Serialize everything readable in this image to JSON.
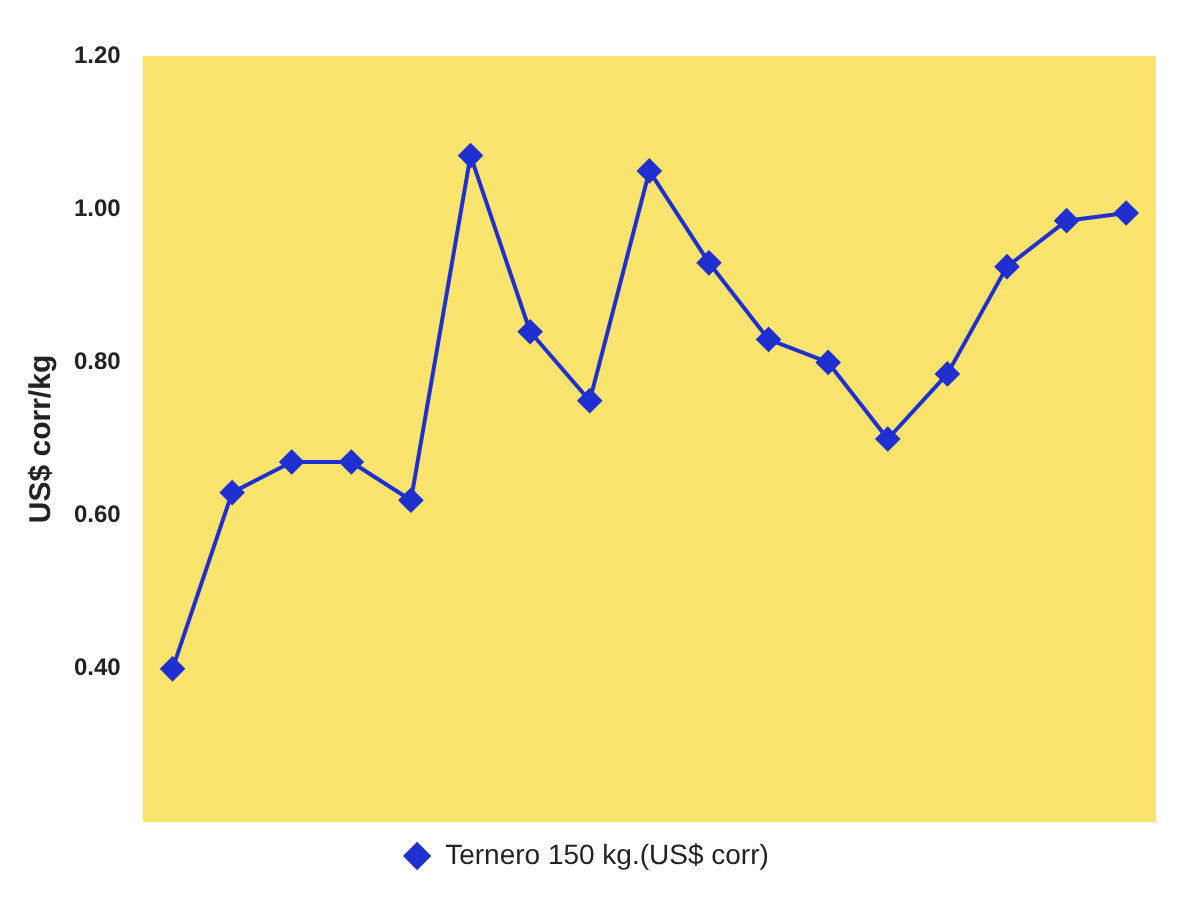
{
  "chart_data": {
    "type": "line",
    "ylabel": "US$ corr/kg",
    "categories": [
      null,
      null,
      null,
      null,
      null,
      null,
      null,
      null,
      null,
      null,
      null,
      null,
      null,
      null,
      null,
      null,
      null
    ],
    "series": [
      {
        "name": "Ternero 150 kg.(US$ corr)",
        "color": "#1f2fd0",
        "values": [
          0.4,
          0.63,
          0.67,
          0.67,
          0.62,
          1.07,
          0.84,
          0.75,
          1.05,
          0.93,
          0.83,
          0.8,
          0.7,
          0.785,
          0.925,
          0.985,
          0.995
        ]
      }
    ],
    "ylim": [
      0.2,
      1.2
    ],
    "yticks": [
      {
        "value": 0.4,
        "label": "0.40"
      },
      {
        "value": 0.6,
        "label": "0.60"
      },
      {
        "value": 0.8,
        "label": "0.80"
      },
      {
        "value": 1.0,
        "label": "1.00"
      },
      {
        "value": 1.2,
        "label": "1.20"
      }
    ],
    "grid": false,
    "legend": "bottom",
    "marker": "diamond",
    "line_style": "solid"
  }
}
